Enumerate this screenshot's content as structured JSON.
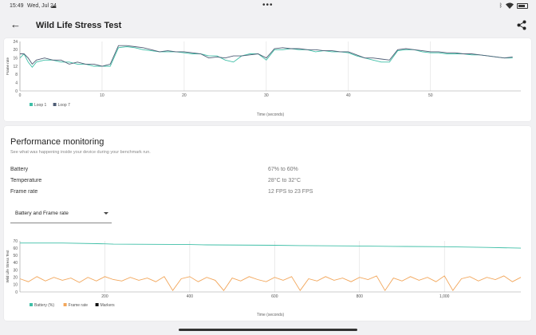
{
  "status_bar": {
    "time": "15:49",
    "date": "Wed, Jul 24",
    "icons": [
      "cloud-icon",
      "bluetooth-icon",
      "wifi-icon",
      "battery-icon"
    ]
  },
  "app_bar": {
    "title": "Wild Life Stress Test",
    "back_icon": "arrow-left-icon",
    "share_icon": "share-icon"
  },
  "loop_chart": {
    "ylabel": "Frame rate",
    "xlabel": "Time (seconds)",
    "y_ticks": [
      "0",
      "4",
      "8",
      "12",
      "16",
      "20",
      "24"
    ],
    "x_ticks": [
      "0",
      "10",
      "20",
      "30",
      "40",
      "50"
    ],
    "legend": [
      {
        "label": "Loop 1",
        "color": "#3fbfa7"
      },
      {
        "label": "Loop 7",
        "color": "#4f5d75"
      }
    ]
  },
  "performance": {
    "title": "Performance monitoring",
    "subtitle": "See what was happening inside your device during your benchmark run.",
    "rows": [
      {
        "label": "Battery",
        "value": "67% to 60%"
      },
      {
        "label": "Temperature",
        "value": "28°C to 32°C"
      },
      {
        "label": "Frame rate",
        "value": "12 FPS to 23 FPS"
      }
    ],
    "dropdown_value": "Battery and Frame rate"
  },
  "monitor_chart": {
    "ylabel": "Wild Life Stress Test",
    "xlabel": "Time (seconds)",
    "y_ticks": [
      "0",
      "10",
      "20",
      "30",
      "40",
      "50",
      "60",
      "70"
    ],
    "x_ticks": [
      "200",
      "400",
      "600",
      "800",
      "1,000"
    ],
    "legend": [
      {
        "label": "Battery (%)",
        "color": "#3fbfa7"
      },
      {
        "label": "Frame rate",
        "color": "#f2a65a"
      },
      {
        "label": "Markers",
        "color": "#111111"
      }
    ]
  },
  "chart_data": [
    {
      "type": "line",
      "xlabel": "Time (seconds)",
      "ylabel": "Frame rate",
      "xlim": [
        0,
        61
      ],
      "ylim": [
        0,
        24
      ],
      "series": [
        {
          "name": "Loop 1",
          "color": "#3fbfa7",
          "x": [
            0,
            0.5,
            1,
            1.5,
            2,
            3,
            4,
            5,
            6,
            7,
            8,
            9,
            10,
            11,
            12,
            13,
            14,
            15,
            16,
            17,
            18,
            19,
            20,
            21,
            22,
            23,
            24,
            25,
            26,
            27,
            28,
            29,
            30,
            31,
            32,
            33,
            34,
            35,
            36,
            37,
            38,
            39,
            40,
            41,
            42,
            43,
            44,
            45,
            46,
            47,
            48,
            49,
            50,
            51,
            52,
            53,
            54,
            55,
            56,
            57,
            58,
            59,
            60
          ],
          "y": [
            16,
            18,
            14,
            11.5,
            14,
            15,
            15,
            14,
            14,
            13,
            13,
            12,
            12,
            12,
            21,
            21.5,
            21,
            20,
            19.5,
            19,
            19,
            19,
            18.5,
            18,
            18,
            17,
            17,
            15,
            14,
            17,
            18,
            18,
            15,
            20,
            20,
            20.5,
            20,
            20,
            19,
            19.5,
            19,
            19,
            18.5,
            17,
            16,
            15,
            14,
            14,
            19.5,
            20,
            20,
            19,
            18.5,
            18.5,
            18,
            18,
            18,
            17.5,
            17.5,
            17,
            16.5,
            16,
            16
          ]
        },
        {
          "name": "Loop 7",
          "color": "#4f5d75",
          "x": [
            0,
            0.5,
            1,
            1.5,
            2,
            3,
            4,
            5,
            6,
            7,
            8,
            9,
            10,
            11,
            12,
            13,
            14,
            15,
            16,
            17,
            18,
            19,
            20,
            21,
            22,
            23,
            24,
            25,
            26,
            27,
            28,
            29,
            30,
            31,
            32,
            33,
            34,
            35,
            36,
            37,
            38,
            39,
            40,
            41,
            42,
            43,
            44,
            45,
            46,
            47,
            48,
            49,
            50,
            51,
            52,
            53,
            54,
            55,
            56,
            57,
            58,
            59,
            60
          ],
          "y": [
            18,
            18,
            16,
            13,
            15,
            16,
            15,
            15,
            13,
            14,
            13,
            13,
            12,
            13,
            22,
            22,
            21.5,
            21,
            20,
            19,
            19.5,
            19,
            19,
            18.5,
            18,
            16,
            16.5,
            16,
            17,
            17,
            17.5,
            18,
            16,
            20.5,
            21,
            20.5,
            20.5,
            20,
            20,
            19.5,
            19.5,
            19,
            19,
            17.5,
            16,
            16,
            15.5,
            15,
            20,
            20.5,
            20,
            19.5,
            19,
            19,
            18.5,
            18.5,
            18,
            18,
            17.5,
            17,
            16.5,
            16,
            16.5
          ]
        }
      ]
    },
    {
      "type": "line",
      "xlabel": "Time (seconds)",
      "ylabel": "Wild Life Stress Test",
      "xlim": [
        0,
        1180
      ],
      "ylim": [
        0,
        70
      ],
      "series": [
        {
          "name": "Battery (%)",
          "color": "#3fbfa7",
          "x": [
            0,
            100,
            200,
            220,
            400,
            440,
            600,
            660,
            800,
            880,
            1000,
            1100,
            1180
          ],
          "y": [
            67,
            67,
            66,
            65.5,
            65,
            64.5,
            64,
            63.5,
            63,
            62.5,
            62,
            61,
            60
          ]
        },
        {
          "name": "Frame rate",
          "color": "#f2a65a",
          "x": [
            0,
            20,
            40,
            60,
            80,
            100,
            120,
            140,
            160,
            180,
            200,
            220,
            240,
            260,
            280,
            300,
            320,
            340,
            360,
            380,
            400,
            420,
            440,
            460,
            480,
            500,
            520,
            540,
            560,
            580,
            600,
            620,
            640,
            660,
            680,
            700,
            720,
            740,
            760,
            780,
            800,
            820,
            840,
            860,
            880,
            900,
            920,
            940,
            960,
            980,
            1000,
            1020,
            1040,
            1060,
            1080,
            1100,
            1120,
            1140,
            1160,
            1180
          ],
          "y": [
            18,
            14,
            21,
            15,
            20,
            16,
            19,
            13,
            20,
            15,
            21,
            17,
            15,
            20,
            16,
            19,
            14,
            21,
            2,
            18,
            21,
            14,
            20,
            16,
            2,
            19,
            15,
            21,
            17,
            14,
            20,
            16,
            21,
            2,
            18,
            15,
            21,
            16,
            19,
            14,
            20,
            17,
            22,
            2,
            19,
            15,
            21,
            16,
            20,
            14,
            22,
            2,
            18,
            21,
            15,
            20,
            17,
            22,
            14,
            20
          ]
        }
      ]
    }
  ]
}
